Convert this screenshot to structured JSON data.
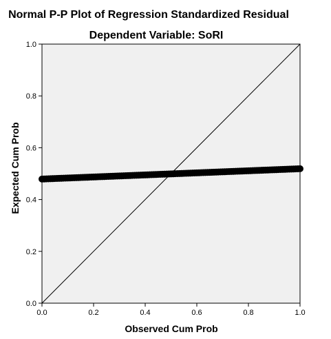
{
  "chart_data": {
    "type": "scatter",
    "title": "Normal P-P Plot of Regression Standardized Residual",
    "subtitle": "Dependent Variable: SoRI",
    "xlabel": "Observed Cum Prob",
    "ylabel": "Expected Cum Prob",
    "xlim": [
      0.0,
      1.0
    ],
    "ylim": [
      0.0,
      1.0
    ],
    "x_ticks": [
      "0.0",
      "0.2",
      "0.4",
      "0.6",
      "0.8",
      "1.0"
    ],
    "y_ticks": [
      "0.0",
      "0.2",
      "0.4",
      "0.6",
      "0.8",
      "1.0"
    ],
    "grid": false,
    "reference_line": {
      "x": [
        0.0,
        1.0
      ],
      "y": [
        0.0,
        1.0
      ]
    },
    "series": [
      {
        "x": [
          0.0,
          0.1,
          0.2,
          0.3,
          0.4,
          0.5,
          0.6,
          0.7,
          0.8,
          0.9,
          1.0
        ],
        "y": [
          0.479,
          0.483,
          0.487,
          0.491,
          0.495,
          0.499,
          0.503,
          0.507,
          0.511,
          0.515,
          0.519
        ]
      }
    ],
    "colors": {
      "plot_background": "#f0f0f0",
      "axis": "#000000",
      "points": "#000000",
      "reference_line": "#000000"
    }
  }
}
